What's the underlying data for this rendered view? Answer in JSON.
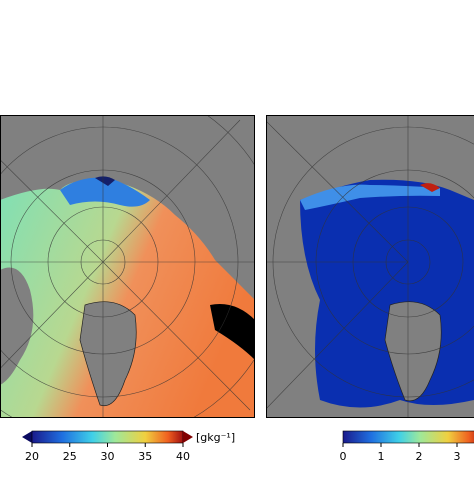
{
  "panels": [
    {
      "colorbar": {
        "ticks": [
          20,
          25,
          30,
          35,
          40
        ],
        "unit": "[gkg⁻¹]"
      }
    },
    {
      "colorbar": {
        "ticks": [
          0,
          1,
          2,
          3
        ]
      }
    }
  ]
}
